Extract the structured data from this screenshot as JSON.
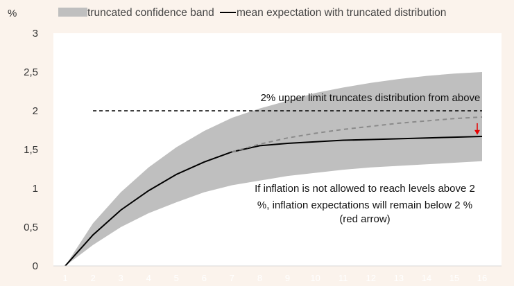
{
  "chart_data": {
    "type": "line",
    "ylabel": "%",
    "ylim": [
      0,
      3
    ],
    "y_ticks": [
      "0",
      "0,5",
      "1",
      "1,5",
      "2",
      "2,5",
      "3"
    ],
    "x": [
      1,
      2,
      3,
      4,
      5,
      6,
      7,
      8,
      9,
      10,
      11,
      12,
      13,
      14,
      15,
      16
    ],
    "x_tick_labels": [
      "1",
      "2",
      "3",
      "4",
      "5",
      "6",
      "7",
      "8",
      "9",
      "10",
      "11",
      "12",
      "13",
      "14",
      "15",
      "16"
    ],
    "grid": false,
    "legend_position": "top",
    "band": {
      "name": "truncated confidence band",
      "color": "#bfbfbf",
      "lower": [
        0,
        0.27,
        0.5,
        0.68,
        0.82,
        0.95,
        1.04,
        1.1,
        1.16,
        1.2,
        1.24,
        1.27,
        1.29,
        1.31,
        1.33,
        1.35
      ],
      "upper": [
        0,
        0.55,
        0.95,
        1.27,
        1.53,
        1.74,
        1.91,
        2.03,
        2.13,
        2.23,
        2.3,
        2.36,
        2.41,
        2.45,
        2.48,
        2.5
      ]
    },
    "series": [
      {
        "name": "mean expectation with truncated distribution",
        "color": "#000000",
        "values": [
          0,
          0.4,
          0.72,
          0.97,
          1.18,
          1.34,
          1.47,
          1.55,
          1.58,
          1.6,
          1.62,
          1.63,
          1.64,
          1.65,
          1.66,
          1.67
        ]
      },
      {
        "style": "dashed",
        "color": "#8a8a8a",
        "x": [
          7,
          8,
          9,
          10,
          11,
          12,
          13,
          14,
          15,
          16
        ],
        "values": [
          1.47,
          1.57,
          1.65,
          1.71,
          1.76,
          1.8,
          1.84,
          1.87,
          1.9,
          1.92
        ]
      }
    ],
    "reference_line": {
      "y": 2,
      "x_range": [
        2,
        16
      ],
      "style": "dashed",
      "color": "#000000"
    },
    "arrow": {
      "x": 16,
      "from": 1.84,
      "to": 1.69,
      "color": "#e60000"
    },
    "annotations": {
      "upper_limit": "2% upper limit truncates distribution from above",
      "note_lines": [
        "If inflation is not allowed to reach levels above 2",
        "%, inflation expectations will remain below 2 %",
        "(red arrow)"
      ]
    }
  }
}
